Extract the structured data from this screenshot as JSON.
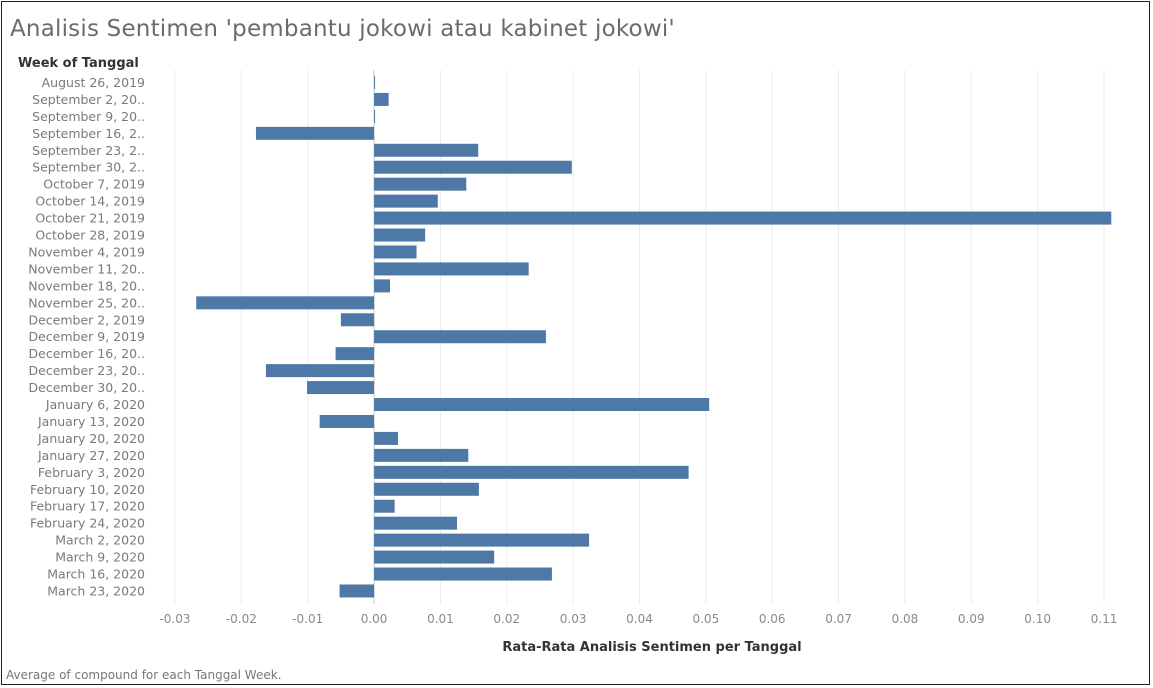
{
  "chart_data": {
    "type": "bar",
    "orientation": "horizontal",
    "title": "Analisis Sentimen 'pembantu jokowi atau kabinet jokowi'",
    "row_header": "Week of Tanggal",
    "xlabel": "Rata-Rata Analisis Sentimen per Tanggal",
    "caption": "Average of compound for each Tanggal Week.",
    "bar_color": "#4e79a7",
    "grid_color": "#ececec",
    "xlim": [
      -0.03,
      0.11
    ],
    "xticks": [
      -0.03,
      -0.02,
      -0.01,
      0.0,
      0.01,
      0.02,
      0.03,
      0.04,
      0.05,
      0.06,
      0.07,
      0.08,
      0.09,
      0.1,
      0.11
    ],
    "xtick_labels": [
      "-0.03",
      "-0.02",
      "-0.01",
      "0.00",
      "0.01",
      "0.02",
      "0.03",
      "0.04",
      "0.05",
      "0.06",
      "0.07",
      "0.08",
      "0.09",
      "0.10",
      "0.11"
    ],
    "categories": [
      "August 26, 2019",
      "September 2, 20..",
      "September 9, 20..",
      "September 16, 2..",
      "September 23, 2..",
      "September 30, 2..",
      "October 7, 2019",
      "October 14, 2019",
      "October 21, 2019",
      "October 28, 2019",
      "November 4, 2019",
      "November 11, 20..",
      "November 18, 20..",
      "November 25, 20..",
      "December 2, 2019",
      "December 9, 2019",
      "December 16, 20..",
      "December 23, 20..",
      "December 30, 20..",
      "January 6, 2020",
      "January 13, 2020",
      "January 20, 2020",
      "January 27, 2020",
      "February 3, 2020",
      "February 10, 2020",
      "February 17, 2020",
      "February 24, 2020",
      "March 2, 2020",
      "March 9, 2020",
      "March 16, 2020",
      "March 23, 2020"
    ],
    "values": [
      0.0001,
      0.0022,
      0.0001,
      -0.0178,
      0.0157,
      0.0298,
      0.0139,
      0.0096,
      0.1111,
      0.0077,
      0.0064,
      0.0233,
      0.0024,
      -0.0268,
      -0.005,
      0.0259,
      -0.0058,
      -0.0163,
      -0.0101,
      0.0505,
      -0.0082,
      0.0036,
      0.0142,
      0.0474,
      0.0158,
      0.0031,
      0.0125,
      0.0324,
      0.0181,
      0.0268,
      -0.0052
    ]
  }
}
